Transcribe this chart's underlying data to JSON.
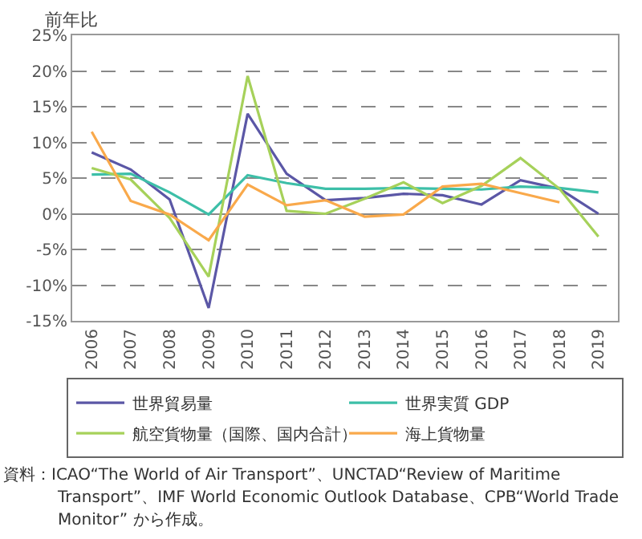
{
  "chart_data": {
    "type": "line",
    "ylabel": "前年比",
    "categories": [
      "2006",
      "2007",
      "2008",
      "2009",
      "2010",
      "2011",
      "2012",
      "2013",
      "2014",
      "2015",
      "2016",
      "2017",
      "2018",
      "2019"
    ],
    "series": [
      {
        "name": "世界貿易量",
        "color": "#5b57a6",
        "values": [
          8.6,
          6.2,
          2.0,
          -13.2,
          14.0,
          5.6,
          1.9,
          2.2,
          2.8,
          2.6,
          1.3,
          4.7,
          3.5,
          0.0
        ]
      },
      {
        "name": "世界実質 GDP",
        "color": "#3dbfa8",
        "values": [
          5.5,
          5.6,
          3.0,
          -0.1,
          5.4,
          4.3,
          3.5,
          3.5,
          3.6,
          3.5,
          3.4,
          3.8,
          3.6,
          3.0
        ]
      },
      {
        "name": "航空貨物量（国際、国内合計）",
        "color": "#a6d15a",
        "values": [
          6.4,
          4.8,
          -0.6,
          -8.8,
          19.3,
          0.4,
          0.0,
          2.1,
          4.4,
          1.5,
          3.9,
          7.8,
          3.5,
          -3.2
        ]
      },
      {
        "name": "海上貨物量",
        "color": "#f9a94b",
        "values": [
          11.5,
          1.8,
          -0.1,
          -3.7,
          4.1,
          1.2,
          1.9,
          -0.4,
          -0.1,
          3.8,
          4.2,
          2.9,
          1.6,
          null
        ]
      }
    ],
    "ylim": [
      -15,
      25
    ],
    "yticks": [
      {
        "value": -15,
        "label": "-15%"
      },
      {
        "value": -10,
        "label": "-10%"
      },
      {
        "value": -5,
        "label": "-5%"
      },
      {
        "value": 0,
        "label": "0%"
      },
      {
        "value": 5,
        "label": "5%"
      },
      {
        "value": 10,
        "label": "10%"
      },
      {
        "value": 15,
        "label": "15%"
      },
      {
        "value": 20,
        "label": "20%"
      },
      {
        "value": 25,
        "label": "25%"
      }
    ],
    "grid": "y",
    "legend": "bottom",
    "marker": "none",
    "line_style": "solid",
    "annotations": [
      "資料：ICAO“The World of Air Transport”、UNCTAD“Review of Maritime Transport”、IMF World Economic Outlook Database、CPB“World Trade Monitor” から作成。"
    ]
  }
}
